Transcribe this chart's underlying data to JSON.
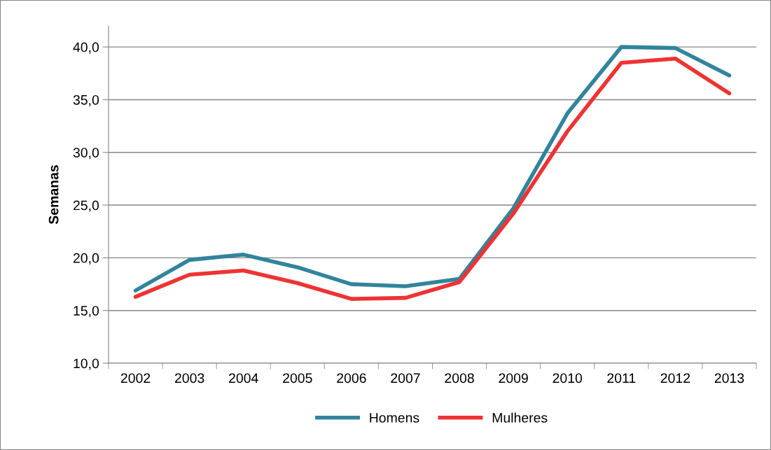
{
  "chart_data": {
    "type": "line",
    "ylabel": "Semanas",
    "categories": [
      "2002",
      "2003",
      "2004",
      "2005",
      "2006",
      "2007",
      "2008",
      "2009",
      "2010",
      "2011",
      "2012",
      "2013"
    ],
    "series": [
      {
        "name": "Homens",
        "color": "#31849b",
        "values": [
          16.9,
          19.8,
          20.3,
          19.1,
          17.5,
          17.3,
          18.0,
          24.7,
          33.7,
          40.0,
          39.9,
          37.3
        ]
      },
      {
        "name": "Mulheres",
        "color": "#ee3333",
        "values": [
          16.3,
          18.4,
          18.8,
          17.6,
          16.1,
          16.2,
          17.7,
          24.2,
          32.0,
          38.5,
          38.9,
          35.6
        ]
      }
    ],
    "ylim": [
      10,
      42
    ],
    "yticks": [
      {
        "value": 10,
        "label": "10,0"
      },
      {
        "value": 15,
        "label": "15,0"
      },
      {
        "value": 20,
        "label": "20,0"
      },
      {
        "value": 25,
        "label": "25,0"
      },
      {
        "value": 30,
        "label": "30,0"
      },
      {
        "value": 35,
        "label": "35,0"
      },
      {
        "value": 40,
        "label": "40,0"
      }
    ],
    "grid": "y",
    "legend": "bottom",
    "marker": "none",
    "line_style": "solid"
  }
}
